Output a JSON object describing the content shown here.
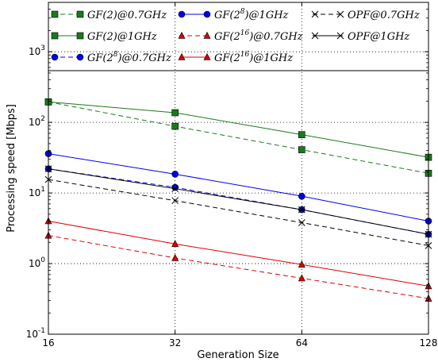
{
  "chart_data": {
    "type": "line",
    "xlabel": "Generation Size",
    "ylabel": "Processing speed [Mbps]",
    "xscale": "log2",
    "yscale": "log10",
    "xlim": [
      16,
      128
    ],
    "ylim": [
      0.1,
      5000
    ],
    "x": [
      16,
      32,
      64,
      128
    ],
    "x_ticks": [
      "16",
      "32",
      "64",
      "128"
    ],
    "y_ticks": [
      {
        "base": "10",
        "exp": "-1",
        "value": 0.1
      },
      {
        "base": "10",
        "exp": "0",
        "value": 1
      },
      {
        "base": "10",
        "exp": "1",
        "value": 10
      },
      {
        "base": "10",
        "exp": "2",
        "value": 100
      },
      {
        "base": "10",
        "exp": "3",
        "value": 1000
      }
    ],
    "grid": true,
    "legend_placement": "top",
    "series": [
      {
        "name": "GF(2)@0.7GHz",
        "label_main": "GF(2)@0.7GHz",
        "label_sup": "",
        "label_tail": "",
        "color": "#1a7a1a",
        "marker": "square",
        "dashed": true,
        "values": [
          195,
          88,
          41,
          19
        ]
      },
      {
        "name": "GF(2)@1GHz",
        "label_main": "GF(2)@1GHz",
        "label_sup": "",
        "label_tail": "",
        "color": "#1a7a1a",
        "marker": "square",
        "dashed": false,
        "values": [
          195,
          137,
          67,
          32
        ]
      },
      {
        "name": "GF(2^8)@0.7GHz",
        "label_main": "GF(2",
        "label_sup": "8",
        "label_tail": ")@0.7GHz",
        "color": "#0000ee",
        "marker": "circle",
        "dashed": true,
        "values": [
          22,
          12,
          5.8,
          2.6
        ]
      },
      {
        "name": "GF(2^8)@1GHz",
        "label_main": "GF(2",
        "label_sup": "8",
        "label_tail": ")@1GHz",
        "color": "#0000ee",
        "marker": "circle",
        "dashed": false,
        "values": [
          36,
          18.5,
          9,
          4
        ]
      },
      {
        "name": "GF(2^16)@0.7GHz",
        "label_main": "GF(2",
        "label_sup": "16",
        "label_tail": ")@0.7GHz",
        "color": "#dd0000",
        "marker": "triangle",
        "dashed": true,
        "values": [
          2.5,
          1.2,
          0.62,
          0.32
        ]
      },
      {
        "name": "GF(2^16)@1GHz",
        "label_main": "GF(2",
        "label_sup": "16",
        "label_tail": ")@1GHz",
        "color": "#dd0000",
        "marker": "triangle",
        "dashed": false,
        "values": [
          4,
          1.9,
          0.97,
          0.48
        ]
      },
      {
        "name": "OPF@0.7GHz",
        "label_main": "OPF@0.7GHz",
        "label_sup": "",
        "label_tail": "",
        "color": "#000000",
        "marker": "x",
        "dashed": true,
        "values": [
          15.5,
          7.8,
          3.8,
          1.8
        ]
      },
      {
        "name": "OPF@1GHz",
        "label_main": "OPF@1GHz",
        "label_sup": "",
        "label_tail": "",
        "color": "#000000",
        "marker": "x",
        "dashed": false,
        "values": [
          22,
          11.5,
          5.8,
          2.6
        ]
      }
    ]
  }
}
